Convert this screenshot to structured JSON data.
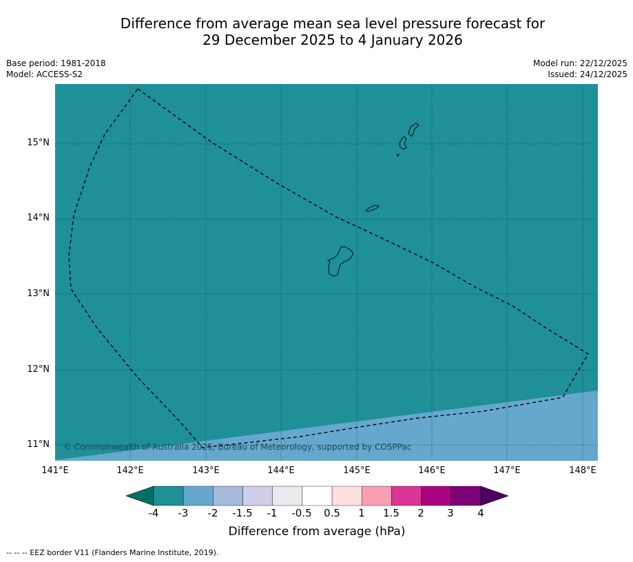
{
  "title_line1": "Difference from average mean sea level pressure forecast for",
  "title_line2": "29 December 2025 to 4 January 2026",
  "meta": {
    "base_period": "Base period: 1981-2018",
    "model": "Model: ACCESS-S2",
    "model_run": "Model run: 22/12/2025",
    "issued": "Issued: 24/12/2025"
  },
  "map": {
    "lat_labels": [
      "15°N",
      "14°N",
      "13°N",
      "12°N",
      "11°N"
    ],
    "lon_labels": [
      "141°E",
      "142°E",
      "143°E",
      "144°E",
      "145°E",
      "146°E",
      "147°E",
      "148°E"
    ],
    "lat_values": [
      15,
      14,
      13,
      12,
      11
    ],
    "lon_values": [
      141,
      142,
      143,
      144,
      145,
      146,
      147,
      148
    ],
    "lon_range": [
      141,
      148.2
    ],
    "lat_range": [
      10.8,
      15.8
    ],
    "fill_main_range": "-4 to -3",
    "fill_secondary_range": "-3 to -2",
    "copyright": "© Commonwealth of Australia 2025, Bureau of Meteorology, supported by COSPPac"
  },
  "colors": {
    "main_fill": "#1f8f98",
    "secondary_fill": "#66a8cd",
    "gridline": "#14535a"
  },
  "colorbar": {
    "ticks": [
      "-4",
      "-3",
      "-2",
      "-1.5",
      "-1",
      "-0.5",
      "0.5",
      "1",
      "1.5",
      "2",
      "3",
      "4"
    ],
    "colors": [
      "#1f8f98",
      "#66a8cd",
      "#a5b9db",
      "#cfcde8",
      "#ebe9ee",
      "#ffffff",
      "#fde0e1",
      "#f89fb7",
      "#db3696",
      "#ab007f",
      "#7d0077"
    ],
    "low_extend_color": "#006f64",
    "high_extend_color": "#4d0066",
    "label": "Difference from average (hPa)"
  },
  "footnote": "--  --  -- EEZ border V11 (Flanders Marine Institute, 2019)."
}
